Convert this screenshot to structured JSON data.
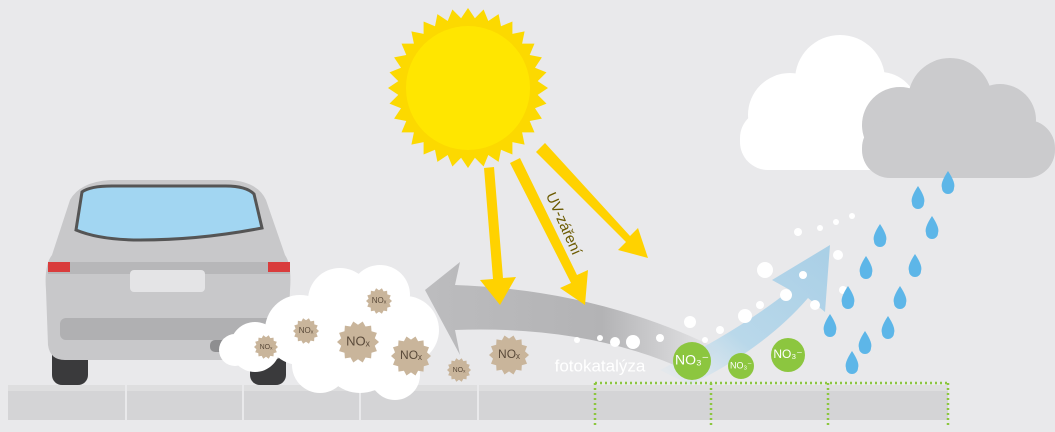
{
  "labels": {
    "uv": "UV-záření",
    "process": "fotokatalýza"
  },
  "pollutants": [
    "NOₓ",
    "NOₓ",
    "NOₓ",
    "NOₓ",
    "NOₓ",
    "NOₓ",
    "NOₓ"
  ],
  "products": [
    "NO₃⁻",
    "NO₃⁻",
    "NO₃⁻"
  ]
}
